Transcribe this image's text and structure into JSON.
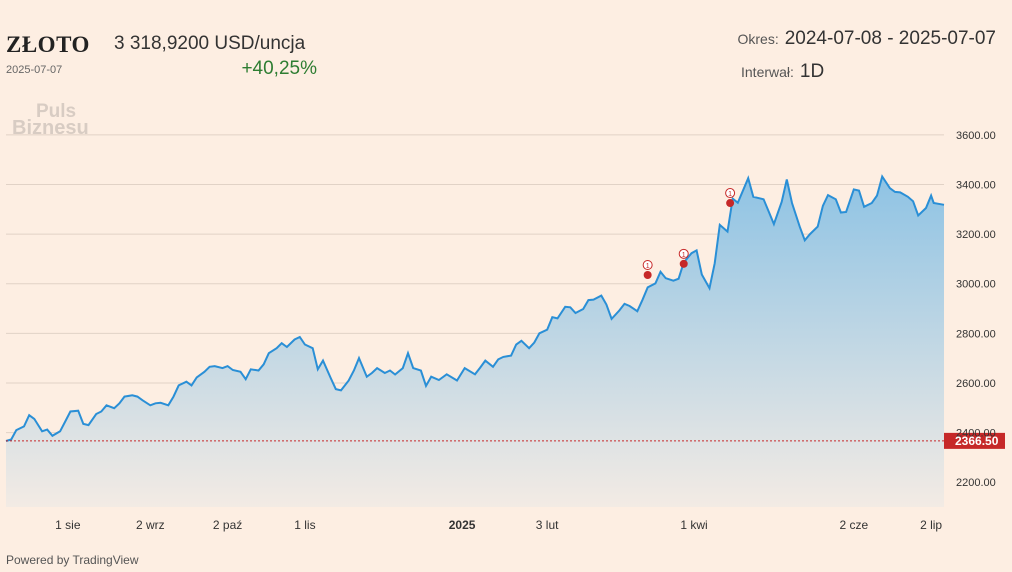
{
  "header": {
    "title": "ZŁOTO",
    "date": "2025-07-07",
    "price": "3 318,9200 USD/uncja",
    "change": "+40,25%",
    "period_label": "Okres:",
    "period_value": "2024-07-08 - 2025-07-07",
    "interval_label": "Interwał:",
    "interval_value": "1D"
  },
  "logo": {
    "line1": "Puls",
    "line2": "Biznesu"
  },
  "footer": "Powered by TradingView",
  "chart_data": {
    "type": "area",
    "line_color": "#2a8fd6",
    "fill_top": "#8ec3e4",
    "fill_bottom": "#f3ebe4",
    "baseline": {
      "value": 2366.5,
      "label": "2366.50",
      "color": "#c62828"
    },
    "ylim": [
      2100,
      3700
    ],
    "y_ticks": [
      2200,
      2400,
      2600,
      2800,
      3000,
      3200,
      3400,
      3600
    ],
    "y_tick_labels": [
      "2200.00",
      "2400.00",
      "2600.00",
      "2800.00",
      "3000.00",
      "3200.00",
      "3400.00",
      "3600.00"
    ],
    "x_ticks": [
      {
        "date": "2024-08-01",
        "label": "1 sie",
        "bold": false
      },
      {
        "date": "2024-09-02",
        "label": "2 wrz",
        "bold": false
      },
      {
        "date": "2024-10-02",
        "label": "2 paź",
        "bold": false
      },
      {
        "date": "2024-11-01",
        "label": "1 lis",
        "bold": false
      },
      {
        "date": "2025-01-01",
        "label": "2025",
        "bold": true
      },
      {
        "date": "2025-02-03",
        "label": "3 lut",
        "bold": false
      },
      {
        "date": "2025-04-01",
        "label": "1 kwi",
        "bold": false
      },
      {
        "date": "2025-06-02",
        "label": "2 cze",
        "bold": false
      },
      {
        "date": "2025-07-02",
        "label": "2 lip",
        "bold": false
      }
    ],
    "events": [
      {
        "date": "2025-03-14",
        "value": 3035,
        "label": "1"
      },
      {
        "date": "2025-03-28",
        "value": 3080,
        "label": "1"
      },
      {
        "date": "2025-04-15",
        "value": 3325,
        "label": "1"
      }
    ],
    "series": [
      {
        "points": [
          [
            "2024-07-08",
            2366
          ],
          [
            "2024-07-10",
            2372
          ],
          [
            "2024-07-12",
            2410
          ],
          [
            "2024-07-15",
            2425
          ],
          [
            "2024-07-17",
            2470
          ],
          [
            "2024-07-19",
            2455
          ],
          [
            "2024-07-22",
            2405
          ],
          [
            "2024-07-24",
            2412
          ],
          [
            "2024-07-26",
            2387
          ],
          [
            "2024-07-29",
            2405
          ],
          [
            "2024-07-31",
            2445
          ],
          [
            "2024-08-02",
            2485
          ],
          [
            "2024-08-05",
            2488
          ],
          [
            "2024-08-07",
            2435
          ],
          [
            "2024-08-09",
            2430
          ],
          [
            "2024-08-12",
            2475
          ],
          [
            "2024-08-14",
            2485
          ],
          [
            "2024-08-16",
            2510
          ],
          [
            "2024-08-19",
            2498
          ],
          [
            "2024-08-21",
            2518
          ],
          [
            "2024-08-23",
            2545
          ],
          [
            "2024-08-26",
            2550
          ],
          [
            "2024-08-28",
            2545
          ],
          [
            "2024-08-30",
            2530
          ],
          [
            "2024-09-02",
            2510
          ],
          [
            "2024-09-04",
            2518
          ],
          [
            "2024-09-06",
            2520
          ],
          [
            "2024-09-09",
            2510
          ],
          [
            "2024-09-11",
            2545
          ],
          [
            "2024-09-13",
            2590
          ],
          [
            "2024-09-16",
            2605
          ],
          [
            "2024-09-18",
            2590
          ],
          [
            "2024-09-20",
            2622
          ],
          [
            "2024-09-23",
            2645
          ],
          [
            "2024-09-25",
            2665
          ],
          [
            "2024-09-27",
            2668
          ],
          [
            "2024-09-30",
            2660
          ],
          [
            "2024-10-02",
            2668
          ],
          [
            "2024-10-04",
            2652
          ],
          [
            "2024-10-07",
            2645
          ],
          [
            "2024-10-09",
            2615
          ],
          [
            "2024-10-11",
            2655
          ],
          [
            "2024-10-14",
            2650
          ],
          [
            "2024-10-16",
            2675
          ],
          [
            "2024-10-18",
            2720
          ],
          [
            "2024-10-21",
            2740
          ],
          [
            "2024-10-23",
            2760
          ],
          [
            "2024-10-25",
            2745
          ],
          [
            "2024-10-28",
            2775
          ],
          [
            "2024-10-30",
            2785
          ],
          [
            "2024-11-01",
            2755
          ],
          [
            "2024-11-04",
            2740
          ],
          [
            "2024-11-06",
            2655
          ],
          [
            "2024-11-08",
            2690
          ],
          [
            "2024-11-11",
            2620
          ],
          [
            "2024-11-13",
            2575
          ],
          [
            "2024-11-15",
            2570
          ],
          [
            "2024-11-18",
            2610
          ],
          [
            "2024-11-20",
            2650
          ],
          [
            "2024-11-22",
            2700
          ],
          [
            "2024-11-25",
            2625
          ],
          [
            "2024-11-27",
            2640
          ],
          [
            "2024-11-29",
            2660
          ],
          [
            "2024-12-02",
            2640
          ],
          [
            "2024-12-04",
            2650
          ],
          [
            "2024-12-06",
            2634
          ],
          [
            "2024-12-09",
            2660
          ],
          [
            "2024-12-11",
            2720
          ],
          [
            "2024-12-13",
            2660
          ],
          [
            "2024-12-16",
            2650
          ],
          [
            "2024-12-18",
            2588
          ],
          [
            "2024-12-20",
            2625
          ],
          [
            "2024-12-23",
            2612
          ],
          [
            "2024-12-26",
            2635
          ],
          [
            "2024-12-30",
            2610
          ],
          [
            "2025-01-02",
            2660
          ],
          [
            "2025-01-06",
            2635
          ],
          [
            "2025-01-08",
            2662
          ],
          [
            "2025-01-10",
            2690
          ],
          [
            "2025-01-13",
            2665
          ],
          [
            "2025-01-15",
            2695
          ],
          [
            "2025-01-17",
            2705
          ],
          [
            "2025-01-20",
            2710
          ],
          [
            "2025-01-22",
            2755
          ],
          [
            "2025-01-24",
            2770
          ],
          [
            "2025-01-27",
            2740
          ],
          [
            "2025-01-29",
            2763
          ],
          [
            "2025-01-31",
            2800
          ],
          [
            "2025-02-03",
            2815
          ],
          [
            "2025-02-05",
            2865
          ],
          [
            "2025-02-07",
            2860
          ],
          [
            "2025-02-10",
            2907
          ],
          [
            "2025-02-12",
            2905
          ],
          [
            "2025-02-14",
            2882
          ],
          [
            "2025-02-17",
            2898
          ],
          [
            "2025-02-19",
            2934
          ],
          [
            "2025-02-21",
            2936
          ],
          [
            "2025-02-24",
            2952
          ],
          [
            "2025-02-26",
            2916
          ],
          [
            "2025-02-28",
            2858
          ],
          [
            "2025-03-03",
            2892
          ],
          [
            "2025-03-05",
            2919
          ],
          [
            "2025-03-07",
            2910
          ],
          [
            "2025-03-10",
            2889
          ],
          [
            "2025-03-12",
            2935
          ],
          [
            "2025-03-14",
            2985
          ],
          [
            "2025-03-17",
            3001
          ],
          [
            "2025-03-19",
            3048
          ],
          [
            "2025-03-21",
            3022
          ],
          [
            "2025-03-24",
            3012
          ],
          [
            "2025-03-26",
            3020
          ],
          [
            "2025-03-28",
            3085
          ],
          [
            "2025-03-31",
            3123
          ],
          [
            "2025-04-02",
            3134
          ],
          [
            "2025-04-04",
            3037
          ],
          [
            "2025-04-07",
            2982
          ],
          [
            "2025-04-09",
            3082
          ],
          [
            "2025-04-11",
            3237
          ],
          [
            "2025-04-14",
            3210
          ],
          [
            "2025-04-16",
            3343
          ],
          [
            "2025-04-18",
            3326
          ],
          [
            "2025-04-22",
            3425
          ],
          [
            "2025-04-24",
            3350
          ],
          [
            "2025-04-28",
            3340
          ],
          [
            "2025-04-30",
            3290
          ],
          [
            "2025-05-02",
            3240
          ],
          [
            "2025-05-05",
            3330
          ],
          [
            "2025-05-07",
            3420
          ],
          [
            "2025-05-09",
            3325
          ],
          [
            "2025-05-12",
            3230
          ],
          [
            "2025-05-14",
            3175
          ],
          [
            "2025-05-16",
            3200
          ],
          [
            "2025-05-19",
            3230
          ],
          [
            "2025-05-21",
            3314
          ],
          [
            "2025-05-23",
            3357
          ],
          [
            "2025-05-26",
            3340
          ],
          [
            "2025-05-28",
            3287
          ],
          [
            "2025-05-30",
            3289
          ],
          [
            "2025-06-02",
            3380
          ],
          [
            "2025-06-04",
            3375
          ],
          [
            "2025-06-06",
            3310
          ],
          [
            "2025-06-09",
            3325
          ],
          [
            "2025-06-11",
            3355
          ],
          [
            "2025-06-13",
            3432
          ],
          [
            "2025-06-16",
            3385
          ],
          [
            "2025-06-18",
            3370
          ],
          [
            "2025-06-20",
            3368
          ],
          [
            "2025-06-23",
            3350
          ],
          [
            "2025-06-25",
            3332
          ],
          [
            "2025-06-27",
            3275
          ],
          [
            "2025-06-30",
            3305
          ],
          [
            "2025-07-02",
            3355
          ],
          [
            "2025-07-03",
            3325
          ],
          [
            "2025-07-07",
            3318
          ]
        ]
      }
    ]
  }
}
